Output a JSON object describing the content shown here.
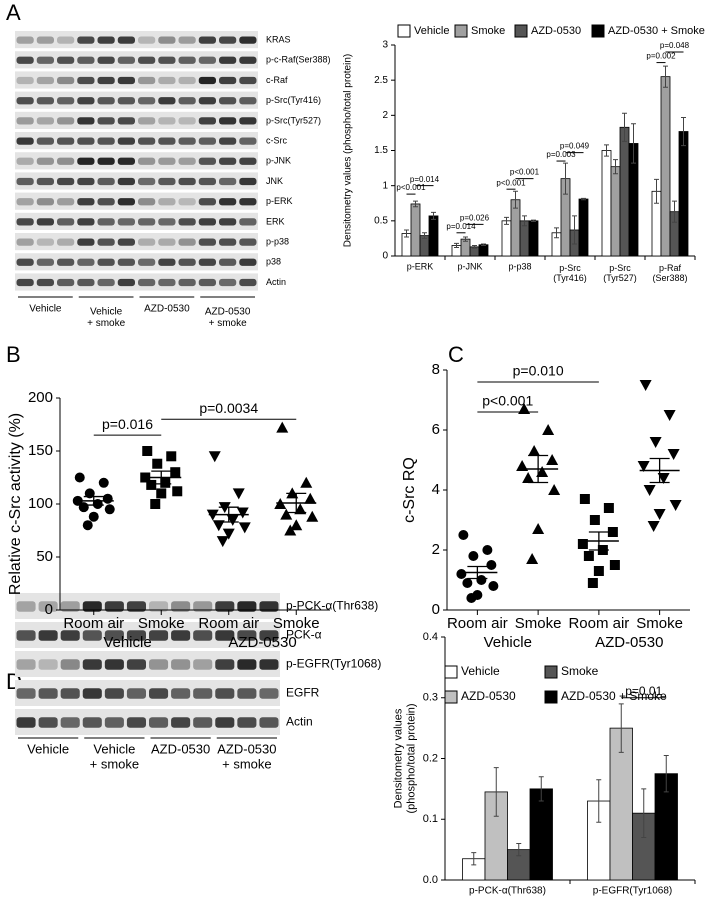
{
  "panels": [
    "A",
    "B",
    "C",
    "D"
  ],
  "blot_a": {
    "rows": [
      "KRAS",
      "p-c-Raf(Ser388)",
      "c-Raf",
      "p-Src(Tyr416)",
      "p-Src(Tyr527)",
      "c-Src",
      "p-JNK",
      "JNK",
      "p-ERK",
      "ERK",
      "p-p38",
      "p38",
      "Actin"
    ],
    "groups": [
      "Vehicle",
      "Vehicle\n+ smoke",
      "AZD-0530",
      "AZD-0530\n+ smoke"
    ]
  },
  "blot_d": {
    "rows": [
      "p-PCK-α(Thr638)",
      "PCK-α",
      "p-EGFR(Tyr1068)",
      "EGFR",
      "Actin"
    ],
    "groups": [
      "Vehicle",
      "Vehicle\n+ smoke",
      "AZD-0530",
      "AZD-0530\n+ smoke"
    ]
  },
  "chart_data": [
    {
      "type": "bar",
      "y_label": "Densitometry values (phospho/total protein)",
      "categories": [
        "p-ERK",
        "p-JNK",
        "p-p38",
        "p-Src\n(Tyr416)",
        "p-Src\n(Tyr527)",
        "p-Raf\n(Ser388)"
      ],
      "series": [
        {
          "name": "Vehicle",
          "color": "#ffffff",
          "values": [
            0.32,
            0.15,
            0.5,
            0.33,
            1.5,
            0.92
          ],
          "errors": [
            0.05,
            0.03,
            0.05,
            0.07,
            0.08,
            0.17
          ]
        },
        {
          "name": "Smoke",
          "color": "#a0a0a0",
          "values": [
            0.74,
            0.24,
            0.8,
            1.1,
            1.27,
            2.55
          ],
          "errors": [
            0.04,
            0.03,
            0.12,
            0.22,
            0.1,
            0.15
          ]
        },
        {
          "name": "AZD-0530",
          "color": "#555555",
          "values": [
            0.29,
            0.13,
            0.5,
            0.37,
            1.83,
            0.63
          ],
          "errors": [
            0.04,
            0.02,
            0.07,
            0.2,
            0.2,
            0.15
          ]
        },
        {
          "name": "AZD-0530 + Smoke",
          "color": "#000000",
          "values": [
            0.57,
            0.16,
            0.5,
            0.81,
            1.6,
            1.77
          ],
          "errors": [
            0.05,
            0.01,
            0.01,
            0.01,
            0.28,
            0.2
          ]
        }
      ],
      "ylim": [
        0,
        3
      ],
      "yticks": [
        0,
        0.5,
        1,
        1.5,
        2,
        2.5,
        3
      ],
      "annotations": [
        "p<0.001",
        "p=0.014",
        "p=0.014",
        "p=0.026",
        "p<0.001",
        "p<0.001",
        "p=0.003",
        "p=0.049",
        "p=0.002",
        "p=0.048"
      ]
    },
    {
      "type": "strip",
      "y_label": "Relative c-Src activity (%)",
      "categories": [
        "Room air",
        "Smoke",
        "Room air",
        "Smoke"
      ],
      "groups": [
        "Vehicle",
        "AZD-0530"
      ],
      "series": [
        {
          "marker": "circle",
          "values": [
            125,
            120,
            110,
            105,
            103,
            100,
            97,
            95,
            88,
            80
          ],
          "mean": 103,
          "sem": 4
        },
        {
          "marker": "square",
          "values": [
            150,
            145,
            138,
            130,
            125,
            120,
            118,
            112,
            110,
            100
          ],
          "mean": 125,
          "sem": 6
        },
        {
          "marker": "triangle-down",
          "values": [
            145,
            110,
            97,
            92,
            90,
            85,
            80,
            78,
            72,
            65
          ],
          "mean": 90,
          "sem": 7
        },
        {
          "marker": "triangle-up",
          "values": [
            172,
            120,
            110,
            105,
            100,
            95,
            90,
            88,
            80,
            75
          ],
          "mean": 101,
          "sem": 9
        }
      ],
      "ylim": [
        0,
        200
      ],
      "yticks": [
        0,
        50,
        100,
        150,
        200
      ],
      "annotations": [
        "p=0.016",
        "p=0.0034"
      ]
    },
    {
      "type": "strip",
      "y_label": "c-Src RQ",
      "categories": [
        "Room air",
        "Smoke",
        "Room air",
        "Smoke"
      ],
      "groups": [
        "Vehicle",
        "AZD-0530"
      ],
      "series": [
        {
          "marker": "circle",
          "values": [
            2.5,
            2.0,
            1.8,
            1.5,
            1.2,
            1.0,
            0.9,
            0.8,
            0.5,
            0.4
          ],
          "mean": 1.25,
          "sem": 0.2
        },
        {
          "marker": "triangle-up",
          "values": [
            6.7,
            6.0,
            5.3,
            5.0,
            4.8,
            4.6,
            4.4,
            4.0,
            2.7,
            1.7
          ],
          "mean": 4.7,
          "sem": 0.45
        },
        {
          "marker": "square",
          "values": [
            3.7,
            3.4,
            3.0,
            2.6,
            2.2,
            2.0,
            1.8,
            1.5,
            1.3,
            0.9
          ],
          "mean": 2.3,
          "sem": 0.3
        },
        {
          "marker": "triangle-down",
          "values": [
            7.5,
            6.5,
            5.6,
            5.2,
            4.8,
            4.4,
            4.0,
            3.5,
            3.2,
            2.8
          ],
          "mean": 4.65,
          "sem": 0.4
        }
      ],
      "ylim": [
        0,
        8
      ],
      "yticks": [
        0,
        2,
        4,
        6,
        8
      ],
      "annotations": [
        "p<0.001",
        "p=0.010"
      ]
    },
    {
      "type": "bar",
      "y_label": "Densitometry values\n(phospho/total protein)",
      "categories": [
        "p-PCK-α(Thr638)",
        "p-EGFR(Tyr1068)"
      ],
      "series": [
        {
          "name": "Vehicle",
          "color": "#ffffff",
          "values": [
            0.035,
            0.13
          ],
          "errors": [
            0.01,
            0.035
          ]
        },
        {
          "name": "AZD-0530",
          "color": "#c0c0c0",
          "values": [
            0.145,
            0.25
          ],
          "errors": [
            0.04,
            0.04
          ]
        },
        {
          "name": "Smoke",
          "color": "#555555",
          "values": [
            0.05,
            0.11
          ],
          "errors": [
            0.01,
            0.04
          ]
        },
        {
          "name": "AZD-0530 + Smoke",
          "color": "#000000",
          "values": [
            0.15,
            0.175
          ],
          "errors": [
            0.02,
            0.03
          ]
        }
      ],
      "ylim": [
        0,
        0.4
      ],
      "yticks": [
        {
          "value": 0,
          "label": "0.0"
        },
        0.1,
        0.2,
        0.3,
        0.4
      ],
      "annotations": [
        "p=0.01"
      ]
    }
  ]
}
